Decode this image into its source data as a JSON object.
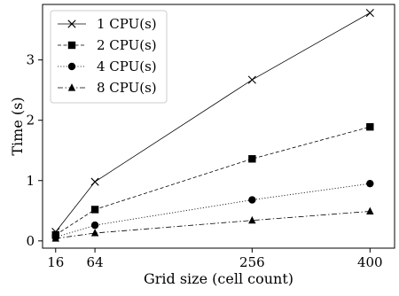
{
  "chart_data": {
    "type": "line",
    "title": "",
    "xlabel": "Grid size (cell count)",
    "ylabel": "Time (s)",
    "x": [
      16,
      64,
      256,
      400
    ],
    "x_ticks": [
      16,
      64,
      256,
      400
    ],
    "y_ticks": [
      0,
      1,
      2,
      3
    ],
    "xlim": [
      0,
      430
    ],
    "ylim": [
      -0.12,
      3.92
    ],
    "grid": false,
    "legend_position": "top-left",
    "series": [
      {
        "name": "1 CPU(s)",
        "values": [
          0.15,
          0.98,
          2.67,
          3.78
        ],
        "marker": "x",
        "dash": "solid"
      },
      {
        "name": "2 CPU(s)",
        "values": [
          0.1,
          0.52,
          1.36,
          1.89
        ],
        "marker": "square",
        "dash": "dashed"
      },
      {
        "name": "4 CPU(s)",
        "values": [
          0.06,
          0.26,
          0.68,
          0.95
        ],
        "marker": "circle",
        "dash": "dotted"
      },
      {
        "name": "8 CPU(s)",
        "values": [
          0.04,
          0.13,
          0.34,
          0.49
        ],
        "marker": "triangle",
        "dash": "dashdot"
      }
    ]
  }
}
